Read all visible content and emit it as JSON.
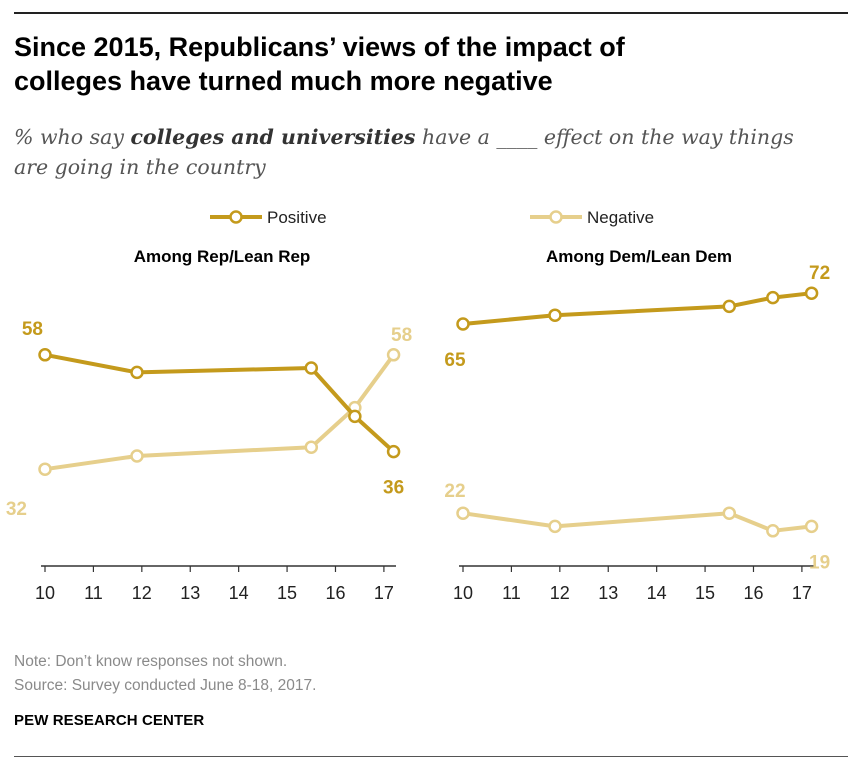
{
  "title_line1": "Since 2015, Republicans’ views of the impact of",
  "title_line2": "colleges have turned much more negative",
  "subtitle_pre": "% who say ",
  "subtitle_bold": "colleges and universities",
  "subtitle_post1": " have a ____ effect on the way things",
  "subtitle_line2": "are going in the country",
  "note": "Note: Don’t know responses not shown.",
  "source": "Source: Survey conducted June 8-18, 2017.",
  "brand": "PEW RESEARCH CENTER",
  "colors": {
    "positive": "#c49a1c",
    "negative": "#e6cf8c",
    "axis": "#333333"
  },
  "chart_data": [
    {
      "type": "line",
      "title": "Among Rep/Lean Rep",
      "x_ticks": [
        "10",
        "11",
        "12",
        "13",
        "14",
        "15",
        "16",
        "17"
      ],
      "xlim": [
        10,
        17.25
      ],
      "ylim": [
        10,
        75
      ],
      "series": [
        {
          "name": "Positive",
          "x": [
            10.0,
            11.9,
            15.5,
            16.4,
            17.2
          ],
          "values": [
            58,
            54,
            55,
            44,
            36
          ]
        },
        {
          "name": "Negative",
          "x": [
            10.0,
            11.9,
            15.5,
            16.4,
            17.2
          ],
          "values": [
            32,
            35,
            37,
            46,
            58
          ]
        }
      ],
      "labels": [
        {
          "text": "58",
          "series": "Positive"
        },
        {
          "text": "36",
          "series": "Positive"
        },
        {
          "text": "32",
          "series": "Negative"
        },
        {
          "text": "58",
          "series": "Negative"
        }
      ]
    },
    {
      "type": "line",
      "title": "Among Dem/Lean Dem",
      "x_ticks": [
        "10",
        "11",
        "12",
        "13",
        "14",
        "15",
        "16",
        "17"
      ],
      "xlim": [
        10,
        17.25
      ],
      "ylim": [
        10,
        75
      ],
      "series": [
        {
          "name": "Positive",
          "x": [
            10.0,
            11.9,
            15.5,
            16.4,
            17.2
          ],
          "values": [
            65,
            67,
            69,
            71,
            72
          ]
        },
        {
          "name": "Negative",
          "x": [
            10.0,
            11.9,
            15.5,
            16.4,
            17.2
          ],
          "values": [
            22,
            19,
            22,
            18,
            19
          ]
        }
      ],
      "labels": [
        {
          "text": "65",
          "series": "Positive"
        },
        {
          "text": "72",
          "series": "Positive"
        },
        {
          "text": "22",
          "series": "Negative"
        },
        {
          "text": "19",
          "series": "Negative"
        }
      ]
    }
  ]
}
